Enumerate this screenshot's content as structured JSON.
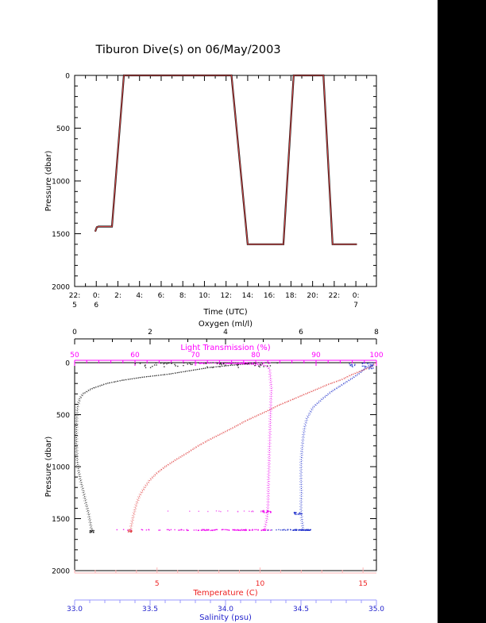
{
  "title": "Tiburon Dive(s) on 06/May/2003",
  "right_margin_color": "#000000",
  "chart_data": [
    {
      "type": "line",
      "name": "dive-pressure-vs-time",
      "title": "Tiburon Dive(s) on 06/May/2003",
      "xlabel": "Time (UTC)",
      "ylabel": "Pressure (dbar)",
      "ylim": [
        0,
        2000
      ],
      "yticks": [
        0,
        500,
        1000,
        1500,
        2000
      ],
      "y_minor_step": 100,
      "xtick_labels": [
        "22:",
        "0:",
        "2:",
        "4:",
        "6:",
        "8:",
        "10:",
        "12:",
        "14:",
        "16:",
        "18:",
        "20:",
        "22:",
        "0:"
      ],
      "xtick_day_labels": {
        "0": "5",
        "1": "6",
        "13": "7"
      },
      "xtick_hours_step": 2,
      "x_hours_span": 27.9,
      "series": [
        {
          "name": "pressure_dbar_vs_hours_since_22utc",
          "line_color": "#111111",
          "overlay_color": "#cc4444",
          "points": [
            [
              1.9,
              1480
            ],
            [
              2.05,
              1438
            ],
            [
              2.2,
              1432
            ],
            [
              3.45,
              1432
            ],
            [
              4.55,
              0
            ],
            [
              14.5,
              0
            ],
            [
              16.0,
              1600
            ],
            [
              19.3,
              1600
            ],
            [
              20.25,
              0
            ],
            [
              23.0,
              0
            ],
            [
              23.85,
              1600
            ],
            [
              26.1,
              1600
            ]
          ]
        }
      ]
    },
    {
      "type": "scatter",
      "name": "ctd-profiles",
      "ylabel": "Pressure (dbar)",
      "ylim": [
        0,
        2000
      ],
      "yticks": [
        0,
        500,
        1000,
        1500,
        2000
      ],
      "y_minor_step": 100,
      "axes": [
        {
          "id": "oxygen",
          "label": "Oxygen (ml/l)",
          "ticks": [
            0,
            2,
            4,
            6,
            8
          ],
          "minor_step": 0.5,
          "range": [
            0,
            8
          ],
          "color": "#000000",
          "line_color": "#000000",
          "position": "top-outer"
        },
        {
          "id": "light",
          "label": "Light Transmission (%)",
          "ticks": [
            50,
            60,
            70,
            80,
            90,
            100
          ],
          "minor_step": 2,
          "range": [
            50,
            100
          ],
          "color": "#ff00ff",
          "line_color": "#ff00ff",
          "position": "top-inner"
        },
        {
          "id": "temp",
          "label": "Temperature (C)",
          "ticks": [
            5,
            10,
            15
          ],
          "minor_step": 1,
          "range": [
            1.0,
            15.65
          ],
          "color": "#ee2222",
          "line_color": "#ffb3b3",
          "position": "bottom-inner"
        },
        {
          "id": "sal",
          "label": "Salinity (psu)",
          "ticks": [
            "33.0",
            "33.5",
            "34.0",
            "34.5",
            "35.0"
          ],
          "minor_step": 0.1,
          "range": [
            33.0,
            35.0
          ],
          "color": "#2222cc",
          "line_color": "#9999ff",
          "position": "bottom-outer"
        }
      ],
      "series": [
        {
          "name": "oxygen",
          "axis": "oxygen",
          "color": "#111111",
          "points": [
            [
              0,
              4.9
            ],
            [
              20,
              4.3
            ],
            [
              45,
              3.6
            ],
            [
              80,
              3.0
            ],
            [
              110,
              2.5
            ],
            [
              140,
              1.8
            ],
            [
              170,
              1.25
            ],
            [
              200,
              0.85
            ],
            [
              250,
              0.45
            ],
            [
              300,
              0.22
            ],
            [
              350,
              0.13
            ],
            [
              420,
              0.08
            ],
            [
              500,
              0.06
            ],
            [
              650,
              0.05
            ],
            [
              800,
              0.05
            ],
            [
              950,
              0.07
            ],
            [
              1050,
              0.11
            ],
            [
              1150,
              0.17
            ],
            [
              1250,
              0.24
            ],
            [
              1350,
              0.3
            ],
            [
              1450,
              0.37
            ],
            [
              1550,
              0.42
            ],
            [
              1625,
              0.46
            ]
          ]
        },
        {
          "name": "temperature",
          "axis": "temp",
          "color": "#e04040",
          "points": [
            [
              0,
              15.6
            ],
            [
              40,
              15.4
            ],
            [
              80,
              14.9
            ],
            [
              120,
              14.4
            ],
            [
              160,
              14.0
            ],
            [
              210,
              13.3
            ],
            [
              260,
              12.7
            ],
            [
              310,
              12.1
            ],
            [
              360,
              11.5
            ],
            [
              410,
              10.9
            ],
            [
              460,
              10.4
            ],
            [
              510,
              9.85
            ],
            [
              560,
              9.3
            ],
            [
              620,
              8.75
            ],
            [
              680,
              8.15
            ],
            [
              740,
              7.55
            ],
            [
              800,
              7.0
            ],
            [
              870,
              6.45
            ],
            [
              930,
              5.95
            ],
            [
              1000,
              5.4
            ],
            [
              1060,
              5.0
            ],
            [
              1130,
              4.65
            ],
            [
              1200,
              4.4
            ],
            [
              1280,
              4.15
            ],
            [
              1360,
              4.0
            ],
            [
              1450,
              3.88
            ],
            [
              1540,
              3.78
            ],
            [
              1625,
              3.7
            ]
          ]
        },
        {
          "name": "light_transmission",
          "axis": "light",
          "color": "#ee00ee",
          "points": [
            [
              0,
              79
            ],
            [
              3,
              76
            ],
            [
              7,
              74.5
            ],
            [
              12,
              77.5
            ],
            [
              18,
              80.5
            ],
            [
              30,
              81.8
            ],
            [
              60,
              82.3
            ],
            [
              120,
              82.4
            ],
            [
              250,
              82.6
            ],
            [
              400,
              82.5
            ],
            [
              600,
              82.4
            ],
            [
              800,
              82.3
            ],
            [
              1000,
              82.2
            ],
            [
              1200,
              82.1
            ],
            [
              1350,
              82.05
            ],
            [
              1430,
              82.0
            ],
            [
              1500,
              81.85
            ],
            [
              1560,
              81.65
            ],
            [
              1615,
              81.4
            ]
          ]
        },
        {
          "name": "salinity",
          "axis": "sal",
          "color": "#2233cc",
          "points": [
            [
              0,
              34.97
            ],
            [
              30,
              34.95
            ],
            [
              60,
              34.92
            ],
            [
              100,
              34.89
            ],
            [
              150,
              34.84
            ],
            [
              215,
              34.77
            ],
            [
              280,
              34.7
            ],
            [
              350,
              34.64
            ],
            [
              430,
              34.58
            ],
            [
              535,
              34.54
            ],
            [
              620,
              34.525
            ],
            [
              710,
              34.515
            ],
            [
              820,
              34.508
            ],
            [
              940,
              34.502
            ],
            [
              1090,
              34.5
            ],
            [
              1250,
              34.503
            ],
            [
              1400,
              34.5
            ],
            [
              1500,
              34.505
            ],
            [
              1615,
              34.515
            ]
          ]
        }
      ],
      "scatter_bands": [
        {
          "name": "oxygen-surface-cloud",
          "axis": "oxygen",
          "color": "#111111",
          "v": [
            1.6,
            5.4
          ],
          "p": [
            2,
            48
          ],
          "n": 70,
          "skew": "top"
        },
        {
          "name": "light-surface-dust",
          "axis": "light",
          "color": "#ee00ee",
          "v": [
            70,
            82.5
          ],
          "p": [
            1,
            7
          ],
          "n": 45
        },
        {
          "name": "salinity-surface-dust",
          "axis": "sal",
          "color": "#2233cc",
          "v": [
            34.82,
            34.99
          ],
          "p": [
            2,
            60
          ],
          "n": 30
        },
        {
          "name": "light-1430-row",
          "axis": "light",
          "color": "#ee55ee",
          "v": [
            62,
            82
          ],
          "p": [
            1426,
            1434
          ],
          "n": 20,
          "skew": "right"
        },
        {
          "name": "light-1430-blob",
          "axis": "light",
          "color": "#ee00ee",
          "v": [
            81,
            82.5
          ],
          "p": [
            1420,
            1442
          ],
          "n": 16
        },
        {
          "name": "light-bottom-row",
          "axis": "light",
          "color": "#ee00ee",
          "v": [
            56,
            82.5
          ],
          "p": [
            1605,
            1614
          ],
          "n": 110,
          "skew": "right"
        },
        {
          "name": "salinity-bottom-row",
          "axis": "sal",
          "color": "#2233cc",
          "v": [
            34.27,
            34.57
          ],
          "p": [
            1605,
            1614
          ],
          "n": 70,
          "skew": "right"
        },
        {
          "name": "salinity-1450-blob",
          "axis": "sal",
          "color": "#2233cc",
          "v": [
            34.45,
            34.51
          ],
          "p": [
            1438,
            1462
          ],
          "n": 16
        },
        {
          "name": "oxygen-bottom-blob",
          "axis": "oxygen",
          "color": "#111111",
          "v": [
            0.4,
            0.52
          ],
          "p": [
            1610,
            1634
          ],
          "n": 12
        },
        {
          "name": "temp-bottom-blob",
          "axis": "temp",
          "color": "#e04040",
          "v": [
            3.6,
            3.8
          ],
          "p": [
            1606,
            1632
          ],
          "n": 12
        }
      ]
    }
  ]
}
